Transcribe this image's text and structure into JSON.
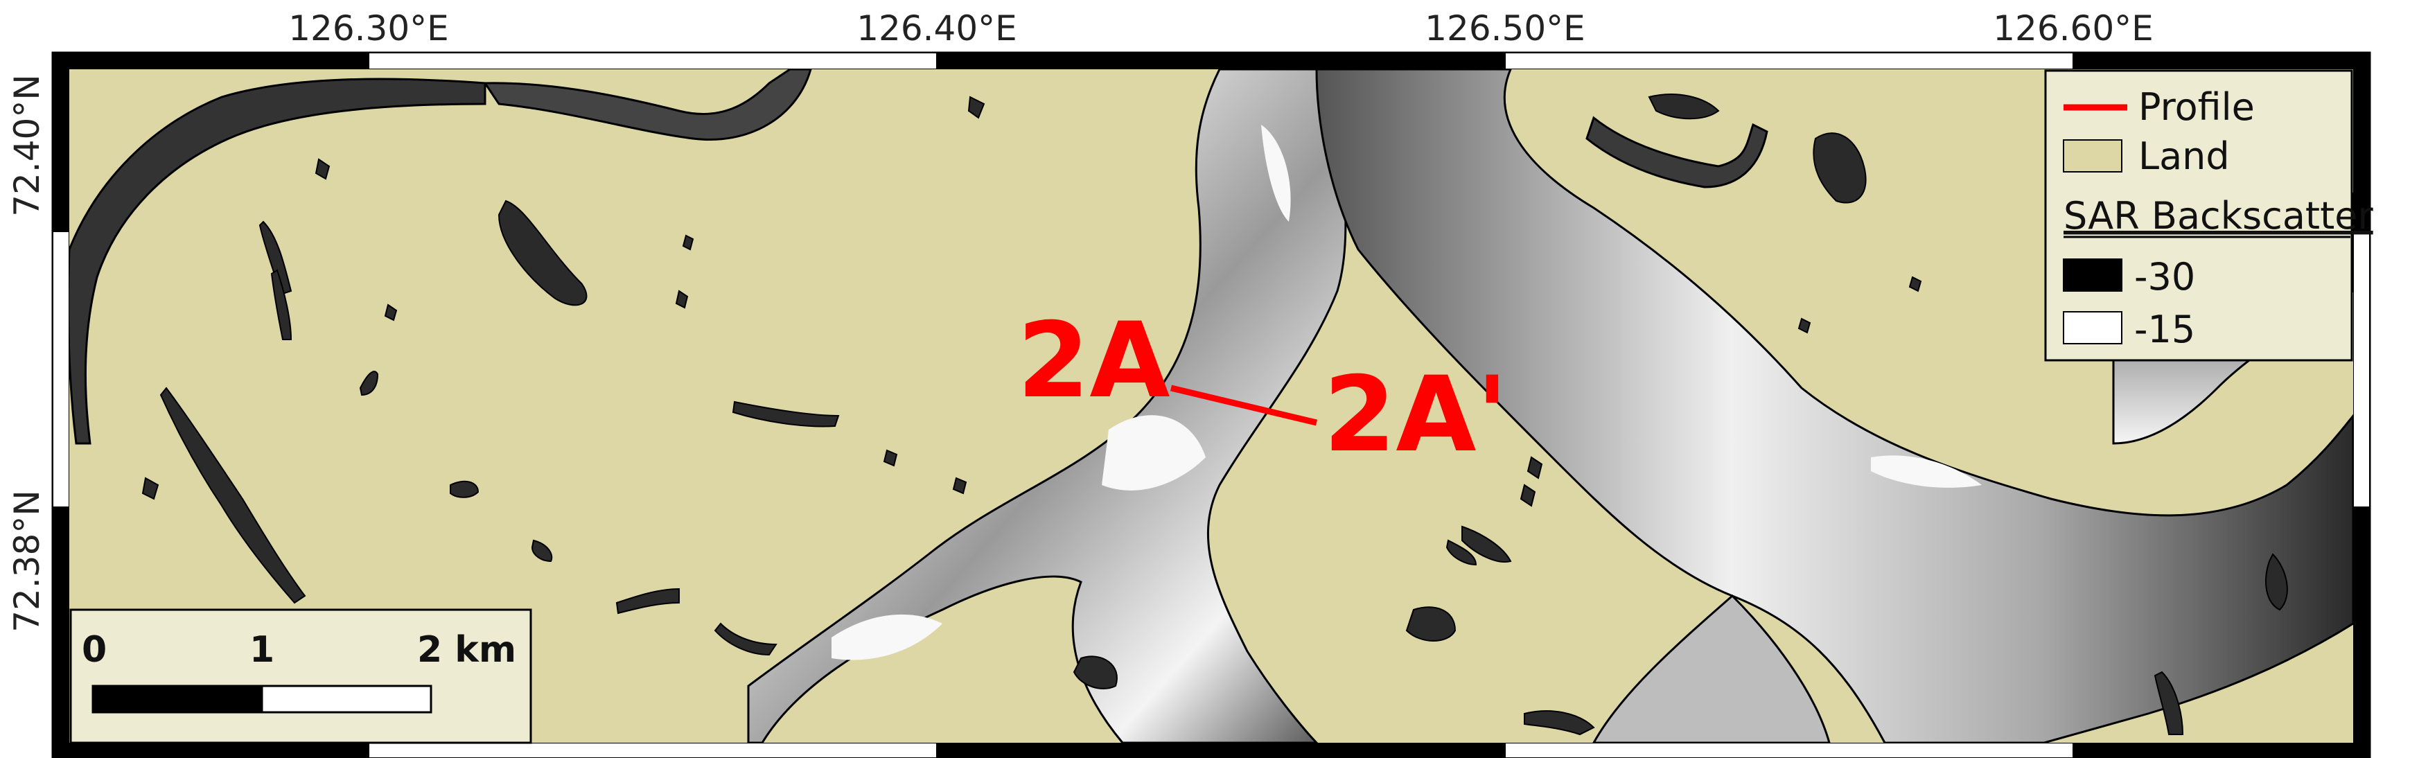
{
  "map": {
    "x_ticks": [
      "126.30°E",
      "126.40°E",
      "126.50°E",
      "126.60°E"
    ],
    "y_ticks": [
      "72.40°N",
      "72.38°N"
    ]
  },
  "legend": {
    "profile_label": "Profile",
    "land_label": "Land",
    "sar_title": "SAR Backscatter",
    "sar_min_label": "-30",
    "sar_max_label": "-15",
    "profile_color": "#ff0000",
    "land_color": "#dcd7a4"
  },
  "scalebar": {
    "label_0": "0",
    "label_1": "1",
    "label_2": "2 km"
  },
  "profile": {
    "start_label": "2A",
    "end_label": "2A'"
  },
  "colors": {
    "land": "#dcd7a4",
    "channel_bright": "#f2f2f2",
    "channel_dark": "#1e1e1e",
    "profile": "#ff0000"
  }
}
